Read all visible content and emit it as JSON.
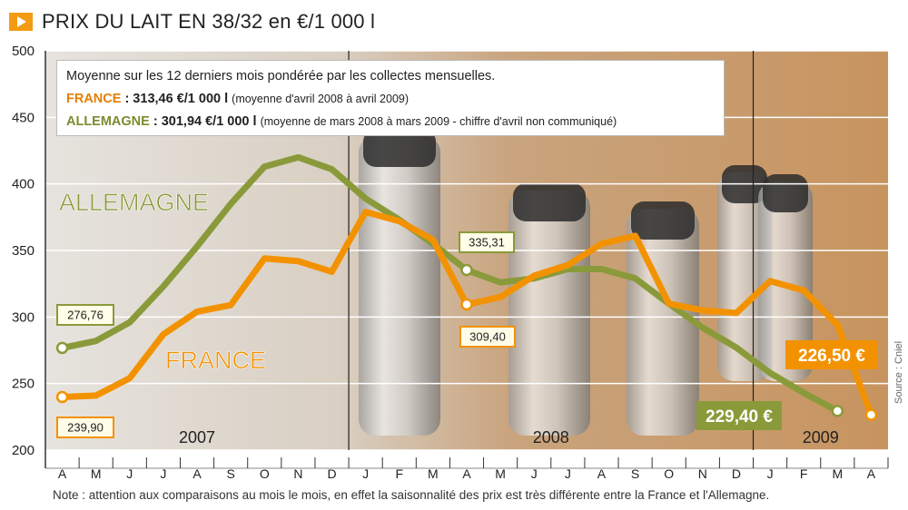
{
  "header": {
    "title": "PRIX DU LAIT EN 38/32 en €/1 000 l"
  },
  "infobox": {
    "line1": "Moyenne sur les 12 derniers mois pondérée par les collectes mensuelles.",
    "france_label": "FRANCE",
    "france_value": ": 313,46  €/1 000 l",
    "france_note": "(moyenne d'avril 2008 à avril 2009)",
    "germany_label": "ALLEMAGNE",
    "germany_value": ": 301,94 €/1 000 l",
    "germany_note": "(moyenne de mars 2008  à mars 2009  -  chiffre d'avril non communiqué)"
  },
  "footer": {
    "note": "Note : attention aux comparaisons au mois le mois, en effet la saisonnalité des prix est très différente entre la France et l'Allemagne.",
    "source": "Source : Cniel"
  },
  "colors": {
    "france": "#f39200",
    "germany": "#8a9a3a",
    "grid": "#ffffff",
    "axis": "#333333"
  },
  "chart_data": {
    "type": "line",
    "title": "PRIX DU LAIT EN 38/32 en €/1 000 l",
    "ylim": [
      200,
      500
    ],
    "yticks": [
      200,
      250,
      300,
      350,
      400,
      450,
      500
    ],
    "grid": true,
    "categories": [
      "A",
      "M",
      "J",
      "J",
      "A",
      "S",
      "O",
      "N",
      "D",
      "J",
      "F",
      "M",
      "A",
      "M",
      "J",
      "J",
      "A",
      "S",
      "O",
      "N",
      "D",
      "J",
      "F",
      "M",
      "A"
    ],
    "year_labels": [
      {
        "label": "2007",
        "start_index": 0
      },
      {
        "label": "2008",
        "start_index": 9
      },
      {
        "label": "2009",
        "start_index": 21
      }
    ],
    "series": [
      {
        "name": "ALLEMAGNE",
        "color": "#8a9a3a",
        "values": [
          276.76,
          282,
          296,
          323,
          353,
          385,
          413,
          420,
          411,
          389,
          373,
          355,
          335.31,
          326,
          329,
          336,
          336,
          329,
          310,
          292,
          277,
          258,
          243,
          229.4,
          null
        ]
      },
      {
        "name": "FRANCE",
        "color": "#f39200",
        "values": [
          239.9,
          241,
          254,
          287,
          304,
          309,
          344,
          342,
          334,
          379,
          372,
          358,
          309.4,
          315,
          331,
          339,
          355,
          361,
          310,
          305,
          303,
          327,
          320,
          294,
          226.5
        ]
      }
    ],
    "annotations": [
      {
        "series": "ALLEMAGNE",
        "index": 0,
        "text": "276,76"
      },
      {
        "series": "ALLEMAGNE",
        "index": 12,
        "text": "335,31"
      },
      {
        "series": "ALLEMAGNE",
        "index": 23,
        "text": "229,40 €"
      },
      {
        "series": "FRANCE",
        "index": 0,
        "text": "239,90"
      },
      {
        "series": "FRANCE",
        "index": 12,
        "text": "309,40"
      },
      {
        "series": "FRANCE",
        "index": 24,
        "text": "226,50 €"
      }
    ],
    "series_labels": [
      "ALLEMAGNE",
      "FRANCE"
    ]
  }
}
